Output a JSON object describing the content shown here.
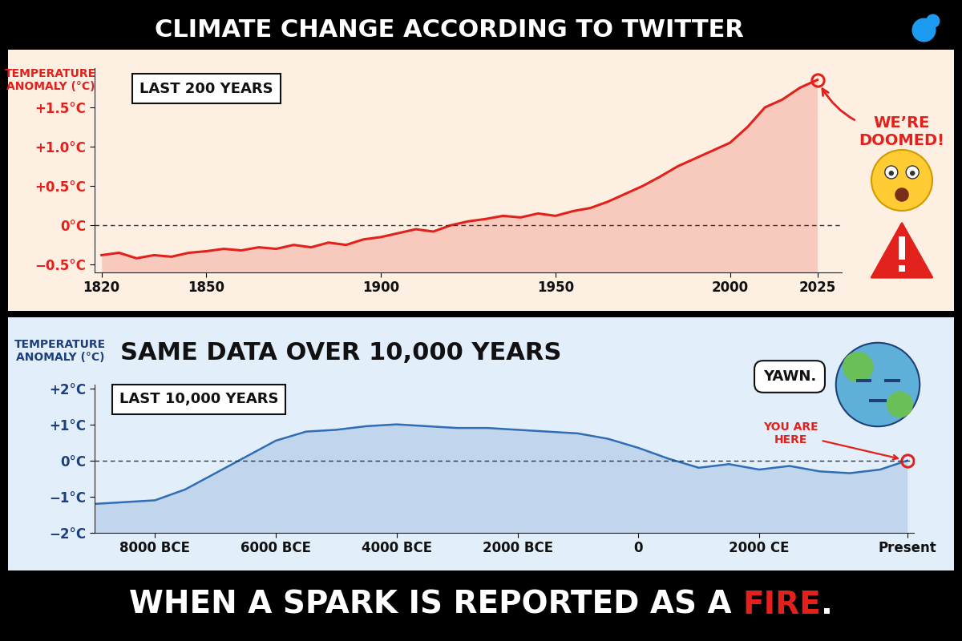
{
  "title": "CLIMATE CHANGE ACCORDING TO TWITTER",
  "footer": [
    "WHEN A SPARK IS REPORTED AS A",
    "FIRE",
    "."
  ],
  "chart_data": [
    {
      "type": "line",
      "subtitle": "LAST 200 YEARS",
      "y_label": "TEMPERATURE\nANOMALY (°C)",
      "x": [
        1820,
        1825,
        1830,
        1835,
        1840,
        1845,
        1850,
        1855,
        1860,
        1865,
        1870,
        1875,
        1880,
        1885,
        1890,
        1895,
        1900,
        1905,
        1910,
        1915,
        1920,
        1925,
        1930,
        1935,
        1940,
        1945,
        1950,
        1955,
        1960,
        1965,
        1970,
        1975,
        1980,
        1985,
        1990,
        1995,
        2000,
        2005,
        2010,
        2015,
        2020,
        2025
      ],
      "values": [
        -0.38,
        -0.35,
        -0.42,
        -0.38,
        -0.4,
        -0.35,
        -0.33,
        -0.3,
        -0.32,
        -0.28,
        -0.3,
        -0.25,
        -0.28,
        -0.22,
        -0.25,
        -0.18,
        -0.15,
        -0.1,
        -0.05,
        -0.08,
        0.0,
        0.05,
        0.08,
        0.12,
        0.1,
        0.15,
        0.12,
        0.18,
        0.22,
        0.3,
        0.4,
        0.5,
        0.62,
        0.75,
        0.85,
        0.95,
        1.05,
        1.25,
        1.5,
        1.6,
        1.75,
        1.85
      ],
      "color": "#e3211c",
      "xlim": [
        1818,
        2032
      ],
      "xticks": [
        1820,
        1850,
        1900,
        1950,
        2000,
        2025
      ],
      "ylim": [
        -0.6,
        2.0
      ],
      "yticks": [
        {
          "value": -0.5,
          "label": "−0.5°C"
        },
        {
          "value": 0,
          "label": "0°C"
        },
        {
          "value": 0.5,
          "label": "+0.5°C"
        },
        {
          "value": 1.0,
          "label": "+1.0°C"
        },
        {
          "value": 1.5,
          "label": "+1.5°C"
        }
      ],
      "baseline": 0,
      "annotations": [
        "WE’RE\nDOOMED!"
      ]
    },
    {
      "type": "line",
      "title": "SAME DATA OVER 10,000 YEARS",
      "subtitle": "LAST 10,000 YEARS",
      "y_label": "TEMPERATURE\nANOMALY (°C)",
      "x": [
        -9000,
        -8500,
        -8000,
        -7500,
        -7000,
        -6500,
        -6000,
        -5500,
        -5000,
        -4500,
        -4000,
        -3500,
        -3000,
        -2500,
        -2000,
        -1500,
        -1000,
        -500,
        0,
        500,
        1000,
        1500,
        2000,
        2500,
        3000,
        3500,
        4000,
        4450
      ],
      "values": [
        -1.2,
        -1.15,
        -1.1,
        -0.8,
        -0.35,
        0.1,
        0.55,
        0.8,
        0.85,
        0.95,
        1.0,
        0.95,
        0.9,
        0.9,
        0.85,
        0.8,
        0.75,
        0.6,
        0.35,
        0.05,
        -0.2,
        -0.1,
        -0.25,
        -0.15,
        -0.3,
        -0.35,
        -0.25,
        0.0
      ],
      "color": "#2f6db5",
      "xlim": [
        -9000,
        4560
      ],
      "xticks": [
        {
          "value": -8000,
          "label": "8000 BCE"
        },
        {
          "value": -6000,
          "label": "6000 BCE"
        },
        {
          "value": -4000,
          "label": "4000 BCE"
        },
        {
          "value": -2000,
          "label": "2000 BCE"
        },
        0,
        {
          "value": 2000,
          "label": "2000 CE"
        },
        {
          "value": 4450,
          "label": "Present"
        }
      ],
      "ylim": [
        -2,
        2.1
      ],
      "yticks": [
        {
          "value": -2,
          "label": "−2°C"
        },
        {
          "value": -1,
          "label": "−1°C"
        },
        {
          "value": 0,
          "label": "0°C"
        },
        {
          "value": 1,
          "label": "+1°C"
        },
        {
          "value": 2,
          "label": "+2°C"
        }
      ],
      "baseline": 0,
      "annotations": [
        "YOU ARE\nHERE",
        "YAWN."
      ]
    }
  ]
}
